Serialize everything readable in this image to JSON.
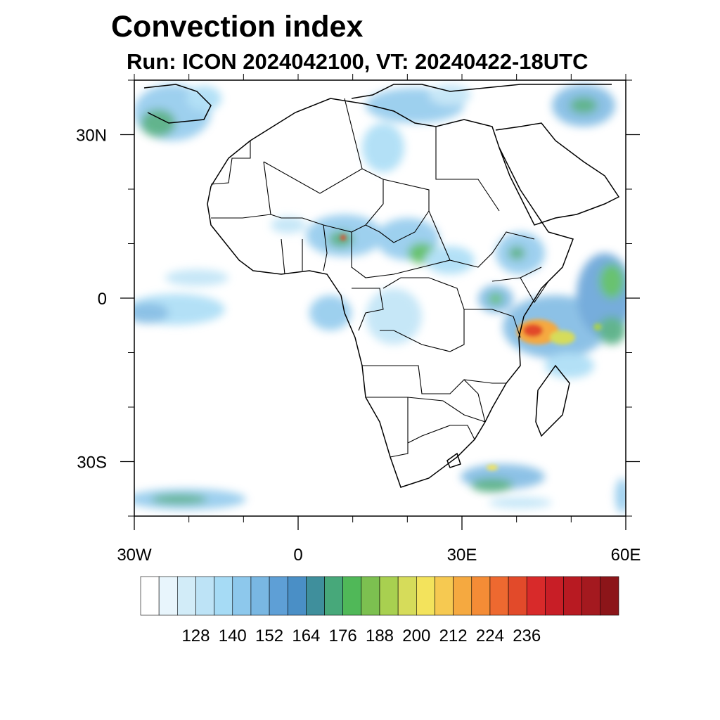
{
  "title": "Convection index",
  "subtitle": "Run: ICON 2024042100,  VT: 20240422-18UTC",
  "map": {
    "lon_range": [
      -30,
      60
    ],
    "lat_range": [
      -40,
      40
    ],
    "x_ticks": [
      {
        "lon": -30,
        "label": "30W"
      },
      {
        "lon": 0,
        "label": "0"
      },
      {
        "lon": 30,
        "label": "30E"
      },
      {
        "lon": 60,
        "label": "60E"
      }
    ],
    "y_ticks": [
      {
        "lat": 30,
        "label": "30N"
      },
      {
        "lat": 0,
        "label": "0"
      },
      {
        "lat": -30,
        "label": "30S"
      }
    ],
    "minor_lon_step": 10,
    "minor_lat_step": 10
  },
  "colorbar": {
    "colors": [
      "#ffffff",
      "#e8f5fc",
      "#d2ecf8",
      "#bde3f6",
      "#a6dbf5",
      "#8dc8ec",
      "#79b7e2",
      "#5e9fd6",
      "#4a8fc6",
      "#3f8f9c",
      "#47a87a",
      "#50b858",
      "#7cc050",
      "#a8d050",
      "#d6dc5a",
      "#f3e35c",
      "#f6c951",
      "#f5a940",
      "#f48c36",
      "#ee6930",
      "#e24a2a",
      "#d82a2a",
      "#c81e26",
      "#b81a22",
      "#a4191f",
      "#8c1519"
    ],
    "labels": [
      "128",
      "140",
      "152",
      "164",
      "176",
      "188",
      "200",
      "212",
      "224",
      "236"
    ]
  }
}
